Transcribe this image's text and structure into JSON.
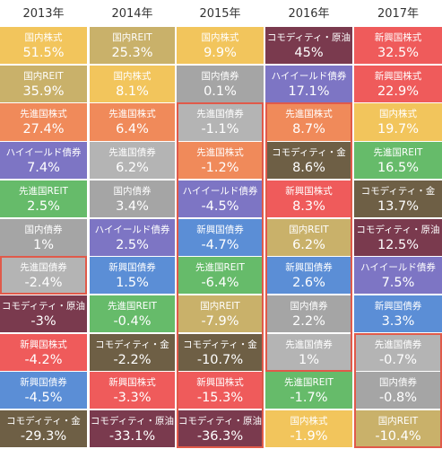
{
  "chart_data": {
    "type": "table",
    "years": [
      "2013年",
      "2014年",
      "2015年",
      "2016年",
      "2017年"
    ],
    "asset_colors": {
      "国内株式": "#f2c55c",
      "国内REIT": "#c9b16a",
      "国内債券": "#a5a5a5",
      "先進国株式": "#f08a5a",
      "先進国REIT": "#66bb6a",
      "先進国債券": "#b4b4b4",
      "新興国株式": "#ef5b5b",
      "新興国債券": "#5b8ed6",
      "ハイイールド債券": "#7d75c4",
      "コモディティ・原油": "#7a3a4e",
      "コモディティ・金": "#6e5f45"
    },
    "columns": [
      {
        "year": "2013年",
        "cells": [
          {
            "name": "国内株式",
            "value": "51.5%",
            "color": "#f2c55c"
          },
          {
            "name": "国内REIT",
            "value": "35.9%",
            "color": "#c9b16a"
          },
          {
            "name": "先進国株式",
            "value": "27.4%",
            "color": "#f08a5a"
          },
          {
            "name": "ハイイールド債券",
            "value": "7.4%",
            "color": "#7d75c4"
          },
          {
            "name": "先進国REIT",
            "value": "2.5%",
            "color": "#66bb6a"
          },
          {
            "name": "国内債券",
            "value": "1%",
            "color": "#a5a5a5"
          },
          {
            "name": "先進国債券",
            "value": "-2.4%",
            "color": "#b4b4b4"
          },
          {
            "name": "コモディティ・原油",
            "value": "-3%",
            "color": "#7a3a4e"
          },
          {
            "name": "新興国株式",
            "value": "-4.2%",
            "color": "#ef5b5b"
          },
          {
            "name": "新興国債券",
            "value": "-4.5%",
            "color": "#5b8ed6"
          },
          {
            "name": "コモディティ・金",
            "value": "-29.3%",
            "color": "#6e5f45"
          }
        ]
      },
      {
        "year": "2014年",
        "cells": [
          {
            "name": "国内REIT",
            "value": "25.3%",
            "color": "#c9b16a"
          },
          {
            "name": "国内株式",
            "value": "8.1%",
            "color": "#f2c55c"
          },
          {
            "name": "先進国株式",
            "value": "6.4%",
            "color": "#f08a5a"
          },
          {
            "name": "先進国債券",
            "value": "6.2%",
            "color": "#b4b4b4"
          },
          {
            "name": "国内債券",
            "value": "3.4%",
            "color": "#a5a5a5"
          },
          {
            "name": "ハイイールド債券",
            "value": "2.5%",
            "color": "#7d75c4"
          },
          {
            "name": "新興国債券",
            "value": "1.5%",
            "color": "#5b8ed6"
          },
          {
            "name": "先進国REIT",
            "value": "-0.4%",
            "color": "#66bb6a"
          },
          {
            "name": "コモディティ・金",
            "value": "-2.2%",
            "color": "#6e5f45"
          },
          {
            "name": "新興国株式",
            "value": "-3.3%",
            "color": "#ef5b5b"
          },
          {
            "name": "コモディティ・原油",
            "value": "-33.1%",
            "color": "#7a3a4e"
          }
        ]
      },
      {
        "year": "2015年",
        "cells": [
          {
            "name": "国内株式",
            "value": "9.9%",
            "color": "#f2c55c"
          },
          {
            "name": "国内債券",
            "value": "0.1%",
            "color": "#a5a5a5"
          },
          {
            "name": "先進国債券",
            "value": "-1.1%",
            "color": "#b4b4b4"
          },
          {
            "name": "先進国株式",
            "value": "-1.2%",
            "color": "#f08a5a"
          },
          {
            "name": "ハイイールド債券",
            "value": "-4.5%",
            "color": "#7d75c4"
          },
          {
            "name": "新興国債券",
            "value": "-4.7%",
            "color": "#5b8ed6"
          },
          {
            "name": "先進国REIT",
            "value": "-6.4%",
            "color": "#66bb6a"
          },
          {
            "name": "国内REIT",
            "value": "-7.9%",
            "color": "#c9b16a"
          },
          {
            "name": "コモディティ・金",
            "value": "-10.7%",
            "color": "#6e5f45"
          },
          {
            "name": "新興国株式",
            "value": "-15.3%",
            "color": "#ef5b5b"
          },
          {
            "name": "コモディティ・原油",
            "value": "-36.3%",
            "color": "#7a3a4e"
          }
        ]
      },
      {
        "year": "2016年",
        "cells": [
          {
            "name": "コモディティ・原油",
            "value": "45%",
            "color": "#7a3a4e"
          },
          {
            "name": "ハイイールド債券",
            "value": "17.1%",
            "color": "#7d75c4"
          },
          {
            "name": "先進国株式",
            "value": "8.7%",
            "color": "#f08a5a"
          },
          {
            "name": "コモディティ・金",
            "value": "8.6%",
            "color": "#6e5f45"
          },
          {
            "name": "新興国株式",
            "value": "8.3%",
            "color": "#ef5b5b"
          },
          {
            "name": "国内REIT",
            "value": "6.2%",
            "color": "#c9b16a"
          },
          {
            "name": "新興国債券",
            "value": "2.6%",
            "color": "#5b8ed6"
          },
          {
            "name": "国内債券",
            "value": "2.2%",
            "color": "#a5a5a5"
          },
          {
            "name": "先進国債券",
            "value": "1%",
            "color": "#b4b4b4"
          },
          {
            "name": "先進国REIT",
            "value": "-1.7%",
            "color": "#66bb6a"
          },
          {
            "name": "国内株式",
            "value": "-1.9%",
            "color": "#f2c55c"
          }
        ]
      },
      {
        "year": "2017年",
        "cells": [
          {
            "name": "新興国株式",
            "value": "32.5%",
            "color": "#ef5b5b"
          },
          {
            "name": "新興国株式",
            "value": "22.9%",
            "color": "#ef5b5b"
          },
          {
            "name": "国内株式",
            "value": "19.7%",
            "color": "#f2c55c"
          },
          {
            "name": "先進国REIT",
            "value": "16.5%",
            "color": "#66bb6a"
          },
          {
            "name": "コモディティ・金",
            "value": "13.7%",
            "color": "#6e5f45"
          },
          {
            "name": "コモディティ・原油",
            "value": "12.5%",
            "color": "#7a3a4e"
          },
          {
            "name": "ハイイールド債券",
            "value": "7.5%",
            "color": "#7d75c4"
          },
          {
            "name": "新興国債券",
            "value": "3.3%",
            "color": "#5b8ed6"
          },
          {
            "name": "先進国債券",
            "value": "-0.7%",
            "color": "#b4b4b4"
          },
          {
            "name": "国内債券",
            "value": "-0.8%",
            "color": "#a5a5a5"
          },
          {
            "name": "国内REIT",
            "value": "-10.4%",
            "color": "#c9b16a"
          }
        ]
      }
    ],
    "highlights": [
      {
        "column": 0,
        "from_row": 6,
        "to_row": 6
      },
      {
        "column": 2,
        "from_row": 2,
        "to_row": 10
      },
      {
        "column": 3,
        "from_row": 2,
        "to_row": 8
      },
      {
        "column": 4,
        "from_row": 8,
        "to_row": 10
      }
    ],
    "highlight_color": "#e05a4a"
  }
}
